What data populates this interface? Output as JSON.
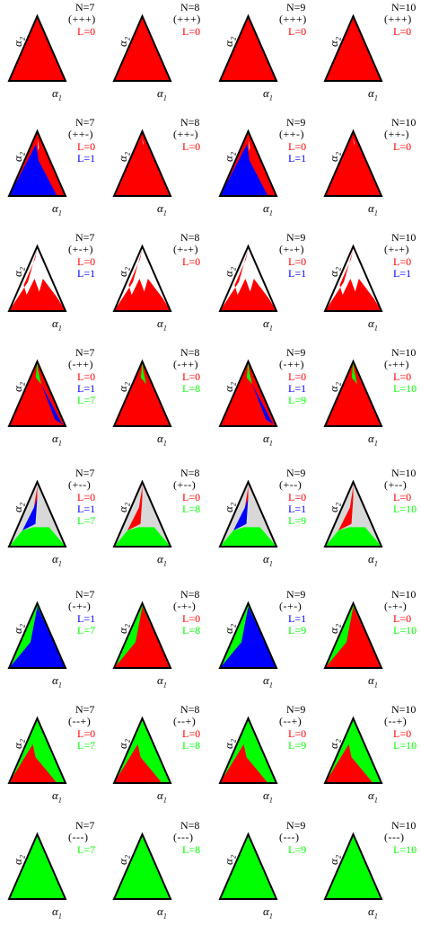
{
  "axis": {
    "x_symbol": "α",
    "x_sub": "1",
    "y_symbol": "α",
    "y_sub": "2"
  },
  "colors": {
    "L0": "#ff0000",
    "L1": "#0000ff",
    "L7plus": "#00ff00",
    "unresolved": "#d8d8d8",
    "edge": "#000000"
  },
  "rows": [
    {
      "sign": "(+++)",
      "panels": [
        {
          "n": "N=7",
          "labels": [
            {
              "text": "L=0",
              "color": "#ff0000"
            }
          ]
        },
        {
          "n": "N=8",
          "labels": [
            {
              "text": "L=0",
              "color": "#ff0000"
            }
          ]
        },
        {
          "n": "N=9",
          "labels": [
            {
              "text": "L=0",
              "color": "#ff0000"
            }
          ]
        },
        {
          "n": "N=10",
          "labels": [
            {
              "text": "L=0",
              "color": "#ff0000"
            }
          ]
        }
      ]
    },
    {
      "sign": "(++-)",
      "panels": [
        {
          "n": "N=7",
          "labels": [
            {
              "text": "L=0",
              "color": "#ff0000"
            },
            {
              "text": "L=1",
              "color": "#0000ff"
            }
          ]
        },
        {
          "n": "N=8",
          "labels": [
            {
              "text": "L=0",
              "color": "#ff0000"
            }
          ]
        },
        {
          "n": "N=9",
          "labels": [
            {
              "text": "L=0",
              "color": "#ff0000"
            },
            {
              "text": "L=1",
              "color": "#0000ff"
            }
          ]
        },
        {
          "n": "N=10",
          "labels": [
            {
              "text": "L=0",
              "color": "#ff0000"
            }
          ]
        }
      ]
    },
    {
      "sign": "(+-+)",
      "panels": [
        {
          "n": "N=7",
          "labels": [
            {
              "text": "L=0",
              "color": "#ff0000"
            },
            {
              "text": "L=1",
              "color": "#0000ff"
            }
          ]
        },
        {
          "n": "N=8",
          "labels": [
            {
              "text": "L=0",
              "color": "#ff0000"
            }
          ]
        },
        {
          "n": "N=9",
          "labels": [
            {
              "text": "L=0",
              "color": "#ff0000"
            },
            {
              "text": "L=1",
              "color": "#0000ff"
            }
          ]
        },
        {
          "n": "N=10",
          "labels": [
            {
              "text": "L=0",
              "color": "#ff0000"
            },
            {
              "text": "L=1",
              "color": "#0000ff"
            }
          ]
        }
      ]
    },
    {
      "sign": "(-++)",
      "panels": [
        {
          "n": "N=7",
          "labels": [
            {
              "text": "L=0",
              "color": "#ff0000"
            },
            {
              "text": "L=1",
              "color": "#0000ff"
            },
            {
              "text": "L=7",
              "color": "#00ff00"
            }
          ]
        },
        {
          "n": "N=8",
          "labels": [
            {
              "text": "L=0",
              "color": "#ff0000"
            },
            {
              "text": "L=8",
              "color": "#00ff00"
            }
          ]
        },
        {
          "n": "N=9",
          "labels": [
            {
              "text": "L=0",
              "color": "#ff0000"
            },
            {
              "text": "L=1",
              "color": "#0000ff"
            },
            {
              "text": "L=9",
              "color": "#00ff00"
            }
          ]
        },
        {
          "n": "N=10",
          "labels": [
            {
              "text": "L=0",
              "color": "#ff0000"
            },
            {
              "text": "L=10",
              "color": "#00ff00"
            }
          ]
        }
      ]
    },
    {
      "sign": "(+--)",
      "panels": [
        {
          "n": "N=7",
          "labels": [
            {
              "text": "L=0",
              "color": "#ff0000"
            },
            {
              "text": "L=1",
              "color": "#0000ff"
            },
            {
              "text": "L=7",
              "color": "#00ff00"
            }
          ]
        },
        {
          "n": "N=8",
          "labels": [
            {
              "text": "L=0",
              "color": "#ff0000"
            },
            {
              "text": "L=8",
              "color": "#00ff00"
            }
          ]
        },
        {
          "n": "N=9",
          "labels": [
            {
              "text": "L=0",
              "color": "#ff0000"
            },
            {
              "text": "L=1",
              "color": "#0000ff"
            },
            {
              "text": "L=9",
              "color": "#00ff00"
            }
          ]
        },
        {
          "n": "N=10",
          "labels": [
            {
              "text": "L=0",
              "color": "#ff0000"
            },
            {
              "text": "L=10",
              "color": "#00ff00"
            }
          ]
        }
      ]
    },
    {
      "sign": "(-+-)",
      "panels": [
        {
          "n": "N=7",
          "labels": [
            {
              "text": "L=1",
              "color": "#0000ff"
            },
            {
              "text": "L=7",
              "color": "#00ff00"
            }
          ]
        },
        {
          "n": "N=8",
          "labels": [
            {
              "text": "L=0",
              "color": "#ff0000"
            },
            {
              "text": "L=8",
              "color": "#00ff00"
            }
          ]
        },
        {
          "n": "N=9",
          "labels": [
            {
              "text": "L=1",
              "color": "#0000ff"
            },
            {
              "text": "L=9",
              "color": "#00ff00"
            }
          ]
        },
        {
          "n": "N=10",
          "labels": [
            {
              "text": "L=0",
              "color": "#ff0000"
            },
            {
              "text": "L=10",
              "color": "#00ff00"
            }
          ]
        }
      ]
    },
    {
      "sign": "(--+)",
      "panels": [
        {
          "n": "N=7",
          "labels": [
            {
              "text": "L=0",
              "color": "#ff0000"
            },
            {
              "text": "L=7",
              "color": "#00ff00"
            }
          ]
        },
        {
          "n": "N=8",
          "labels": [
            {
              "text": "L=0",
              "color": "#ff0000"
            },
            {
              "text": "L=8",
              "color": "#00ff00"
            }
          ]
        },
        {
          "n": "N=9",
          "labels": [
            {
              "text": "L=0",
              "color": "#ff0000"
            },
            {
              "text": "L=9",
              "color": "#00ff00"
            }
          ]
        },
        {
          "n": "N=10",
          "labels": [
            {
              "text": "L=0",
              "color": "#ff0000"
            },
            {
              "text": "L=10",
              "color": "#00ff00"
            }
          ]
        }
      ]
    },
    {
      "sign": "(---)",
      "panels": [
        {
          "n": "N=7",
          "labels": [
            {
              "text": "L=7",
              "color": "#00ff00"
            }
          ]
        },
        {
          "n": "N=8",
          "labels": [
            {
              "text": "L=8",
              "color": "#00ff00"
            }
          ]
        },
        {
          "n": "N=9",
          "labels": [
            {
              "text": "L=9",
              "color": "#00ff00"
            }
          ]
        },
        {
          "n": "N=10",
          "labels": [
            {
              "text": "L=10",
              "color": "#00ff00"
            }
          ]
        }
      ]
    }
  ]
}
